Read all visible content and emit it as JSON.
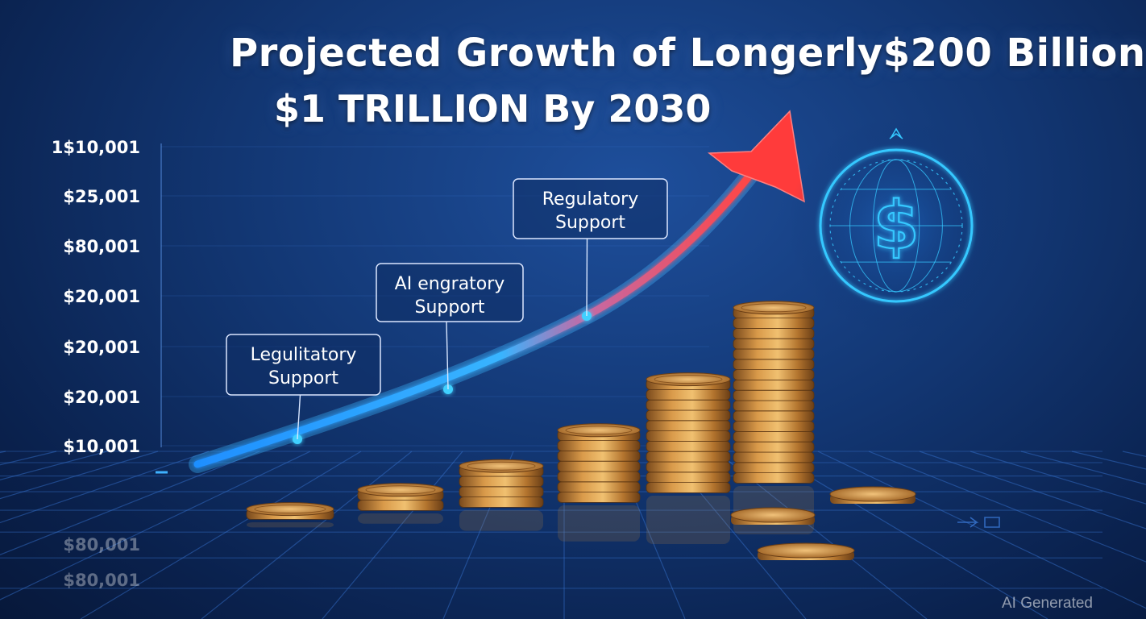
{
  "title": {
    "line1": "Projected Growth of Longerly$200 Billion",
    "line2": "$1 TRILLION By 2030"
  },
  "watermark": "AI Generated",
  "colors": {
    "background": "#123672",
    "grid": "#3a78d6",
    "curve_start": "#2aa7ff",
    "curve_end": "#ff4a4a",
    "coin": "#c98a3a",
    "globe": "#35c8ff"
  },
  "icons": [
    "dollar-globe-icon",
    "arrow-head-icon"
  ],
  "chart_data": {
    "type": "line",
    "title": "Projected Growth of Longerly$200 Billion $1 TRILLION By 2030",
    "y_tick_labels": [
      "1$10,001",
      "$25,001",
      "$80,001",
      "$20,001",
      "$20,001",
      "$20,001",
      "$10,001"
    ],
    "reflected_labels": [
      "$80,001",
      "$80,001"
    ],
    "annotations": [
      {
        "text_line1": "Legulitatory",
        "text_line2": "Support"
      },
      {
        "text_line1": "AI engratory",
        "text_line2": "Support"
      },
      {
        "text_line1": "Regulatory",
        "text_line2": "Support"
      }
    ],
    "coin_stacks": [
      1,
      2,
      4,
      7,
      11,
      17
    ],
    "grid": true,
    "legend": "none"
  }
}
